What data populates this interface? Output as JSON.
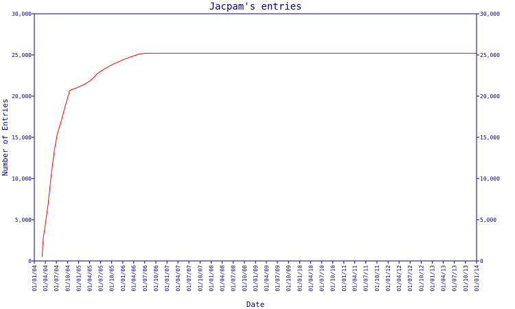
{
  "chart_data": {
    "type": "line",
    "title": "Jacpam's entries",
    "xlabel": "Date",
    "ylabel": "Number of Entries",
    "ylim": [
      0,
      30000
    ],
    "yticks": [
      0,
      5000,
      10000,
      15000,
      20000,
      25000,
      30000
    ],
    "ytick_labels": [
      "0",
      "5,000",
      "10,000",
      "15,000",
      "20,000",
      "25,000",
      "30,000"
    ],
    "xlim": [
      "2004-01-01",
      "2014-01-01"
    ],
    "xtick_labels": [
      "01/01/04",
      "01/04/04",
      "01/07/04",
      "01/10/04",
      "01/01/05",
      "01/04/05",
      "01/07/05",
      "01/10/05",
      "01/01/06",
      "01/04/06",
      "01/07/06",
      "01/10/06",
      "01/01/07",
      "01/04/07",
      "01/07/07",
      "01/10/07",
      "01/01/08",
      "01/04/08",
      "01/07/08",
      "01/10/08",
      "01/01/09",
      "01/04/09",
      "01/07/09",
      "01/10/09",
      "01/01/10",
      "01/04/10",
      "01/07/10",
      "01/10/10",
      "01/01/11",
      "01/04/11",
      "01/07/11",
      "01/10/11",
      "01/01/12",
      "01/04/12",
      "01/07/12",
      "01/10/12",
      "01/01/13",
      "01/04/13",
      "01/07/13",
      "01/10/13",
      "01/01/14"
    ],
    "xtick_dates": [
      "2004-01-01",
      "2004-04-01",
      "2004-07-01",
      "2004-10-01",
      "2005-01-01",
      "2005-04-01",
      "2005-07-01",
      "2005-10-01",
      "2006-01-01",
      "2006-04-01",
      "2006-07-01",
      "2006-10-01",
      "2007-01-01",
      "2007-04-01",
      "2007-07-01",
      "2007-10-01",
      "2008-01-01",
      "2008-04-01",
      "2008-07-01",
      "2008-10-01",
      "2009-01-01",
      "2009-04-01",
      "2009-07-01",
      "2009-10-01",
      "2010-01-01",
      "2010-04-01",
      "2010-07-01",
      "2010-10-01",
      "2011-01-01",
      "2011-04-01",
      "2011-07-01",
      "2011-10-01",
      "2012-01-01",
      "2012-04-01",
      "2012-07-01",
      "2012-10-01",
      "2013-01-01",
      "2013-04-01",
      "2013-07-01",
      "2013-10-01",
      "2014-01-01"
    ],
    "series": [
      {
        "color": "#ff0000",
        "points": [
          [
            "2004-03-05",
            500
          ],
          [
            "2004-03-15",
            2800
          ],
          [
            "2004-04-05",
            4800
          ],
          [
            "2004-04-25",
            7000
          ],
          [
            "2004-05-20",
            10500
          ],
          [
            "2004-06-15",
            13500
          ],
          [
            "2004-07-10",
            15500
          ],
          [
            "2004-08-01",
            16500
          ],
          [
            "2004-08-25",
            17800
          ],
          [
            "2004-09-20",
            19200
          ],
          [
            "2004-10-20",
            20700
          ],
          [
            "2004-12-15",
            21000
          ],
          [
            "2005-02-15",
            21400
          ],
          [
            "2005-04-01",
            21800
          ],
          [
            "2005-05-01",
            22200
          ],
          [
            "2005-06-01",
            22700
          ],
          [
            "2005-08-01",
            23300
          ],
          [
            "2005-10-15",
            23900
          ],
          [
            "2006-01-01",
            24400
          ],
          [
            "2006-03-15",
            24800
          ],
          [
            "2006-05-15",
            25100
          ],
          [
            "2006-07-01",
            25200
          ],
          [
            "2013-12-31",
            25200
          ]
        ]
      }
    ]
  }
}
